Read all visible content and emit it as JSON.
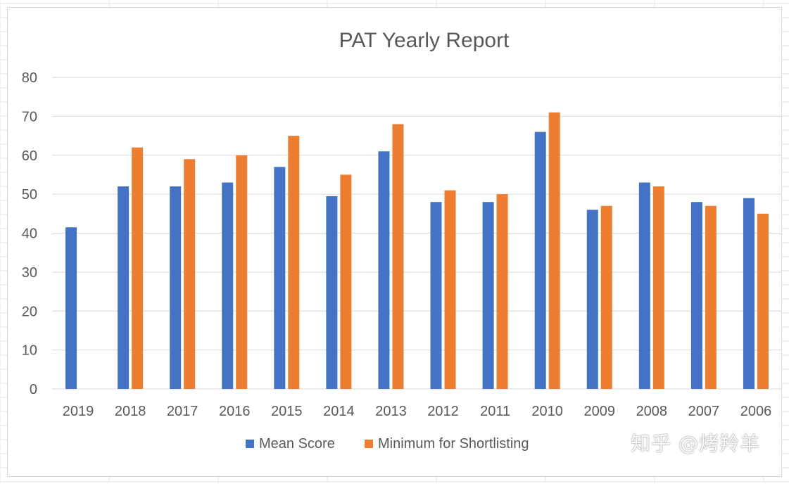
{
  "watermark": "知乎 @烤羚羊",
  "colors": {
    "mean": "#4472c4",
    "shortlist": "#ed7d31",
    "grid": "#d9d9d9",
    "axis_text": "#595959",
    "title_text": "#595959",
    "sheet_grid": "#e4e4e4"
  },
  "chart_data": {
    "type": "bar",
    "title": "PAT Yearly Report",
    "xlabel": "",
    "ylabel": "",
    "ylim": [
      0,
      80
    ],
    "yticks": [
      0,
      10,
      20,
      30,
      40,
      50,
      60,
      70,
      80
    ],
    "grid": true,
    "legend_position": "bottom",
    "categories": [
      "2019",
      "2018",
      "2017",
      "2016",
      "2015",
      "2014",
      "2013",
      "2012",
      "2011",
      "2010",
      "2009",
      "2008",
      "2007",
      "2006"
    ],
    "series": [
      {
        "name": "Mean Score",
        "color": "#4472c4",
        "values": [
          41.5,
          52,
          52,
          53,
          57,
          49.5,
          61,
          48,
          48,
          66,
          46,
          53,
          48,
          49
        ]
      },
      {
        "name": "Minimum for Shortlisting",
        "color": "#ed7d31",
        "values": [
          null,
          62,
          59,
          60,
          65,
          55,
          68,
          51,
          50,
          71,
          47,
          52,
          47,
          45
        ]
      }
    ]
  }
}
